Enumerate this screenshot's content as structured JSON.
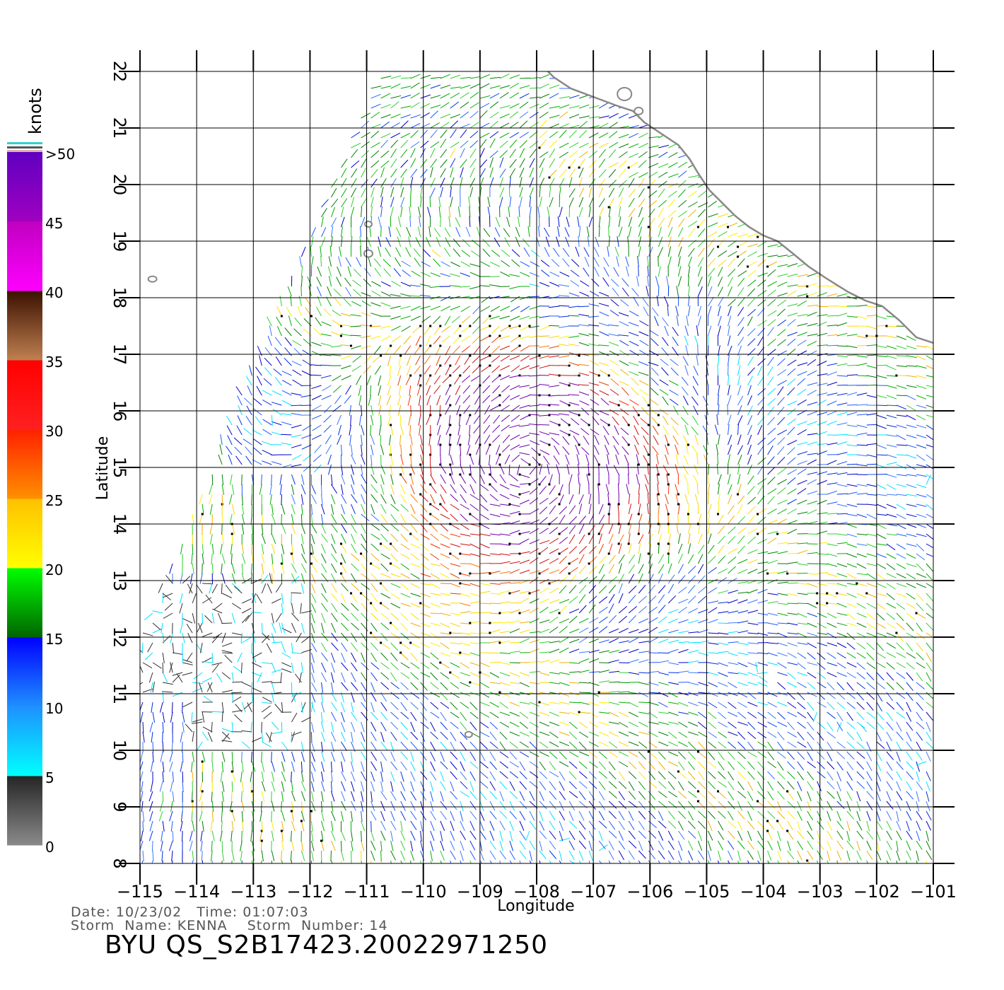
{
  "map": {
    "lon_range": [
      -115,
      -101
    ],
    "lat_range": [
      8,
      22
    ],
    "grid": true,
    "xlabel": "Longitude",
    "ylabel": "Latitude",
    "lon_ticks": [
      "−115",
      "−114",
      "−113",
      "−112",
      "−111",
      "−110",
      "−109",
      "−108",
      "−107",
      "−106",
      "−105",
      "−104",
      "−103",
      "−102",
      "−101"
    ],
    "lat_ticks": [
      "8",
      "9",
      "10",
      "11",
      "12",
      "13",
      "14",
      "15",
      "16",
      "17",
      "18",
      "19",
      "20",
      "21",
      "22"
    ],
    "storm_center": [
      -108.2,
      15.0
    ],
    "coastline_color": "#888888"
  },
  "colorbar": {
    "units": "knots",
    "labels": [
      "0",
      "5",
      "10",
      "15",
      "20",
      "25",
      "30",
      "35",
      "40",
      "45",
      ">50"
    ],
    "bands": [
      {
        "range": [
          0,
          5
        ],
        "colors": [
          "#8a8a8a",
          "#252525"
        ]
      },
      {
        "range": [
          5,
          10
        ],
        "colors": [
          "#00ffff",
          "#1e90ff"
        ]
      },
      {
        "range": [
          10,
          15
        ],
        "colors": [
          "#1e90ff",
          "#0000ff"
        ]
      },
      {
        "range": [
          15,
          20
        ],
        "colors": [
          "#006400",
          "#00ff00"
        ]
      },
      {
        "range": [
          20,
          25
        ],
        "colors": [
          "#ffff00",
          "#ffc000"
        ]
      },
      {
        "range": [
          25,
          30
        ],
        "colors": [
          "#ff9000",
          "#ff2000"
        ]
      },
      {
        "range": [
          30,
          35
        ],
        "colors": [
          "#ff2020",
          "#ff0000"
        ]
      },
      {
        "range": [
          35,
          40
        ],
        "colors": [
          "#c08050",
          "#3a1000"
        ]
      },
      {
        "range": [
          40,
          45
        ],
        "colors": [
          "#ff00ff",
          "#c000c0"
        ]
      },
      {
        "range": [
          45,
          50
        ],
        "colors": [
          "#a000c0",
          "#6000c0"
        ]
      }
    ]
  },
  "footer": {
    "line1": "Date: 10/23/02   Time: 01:07:03",
    "line2": "Storm  Name: KENNA    Storm  Number: 14",
    "product": "BYU  QS_S2B17423.20022971250"
  }
}
